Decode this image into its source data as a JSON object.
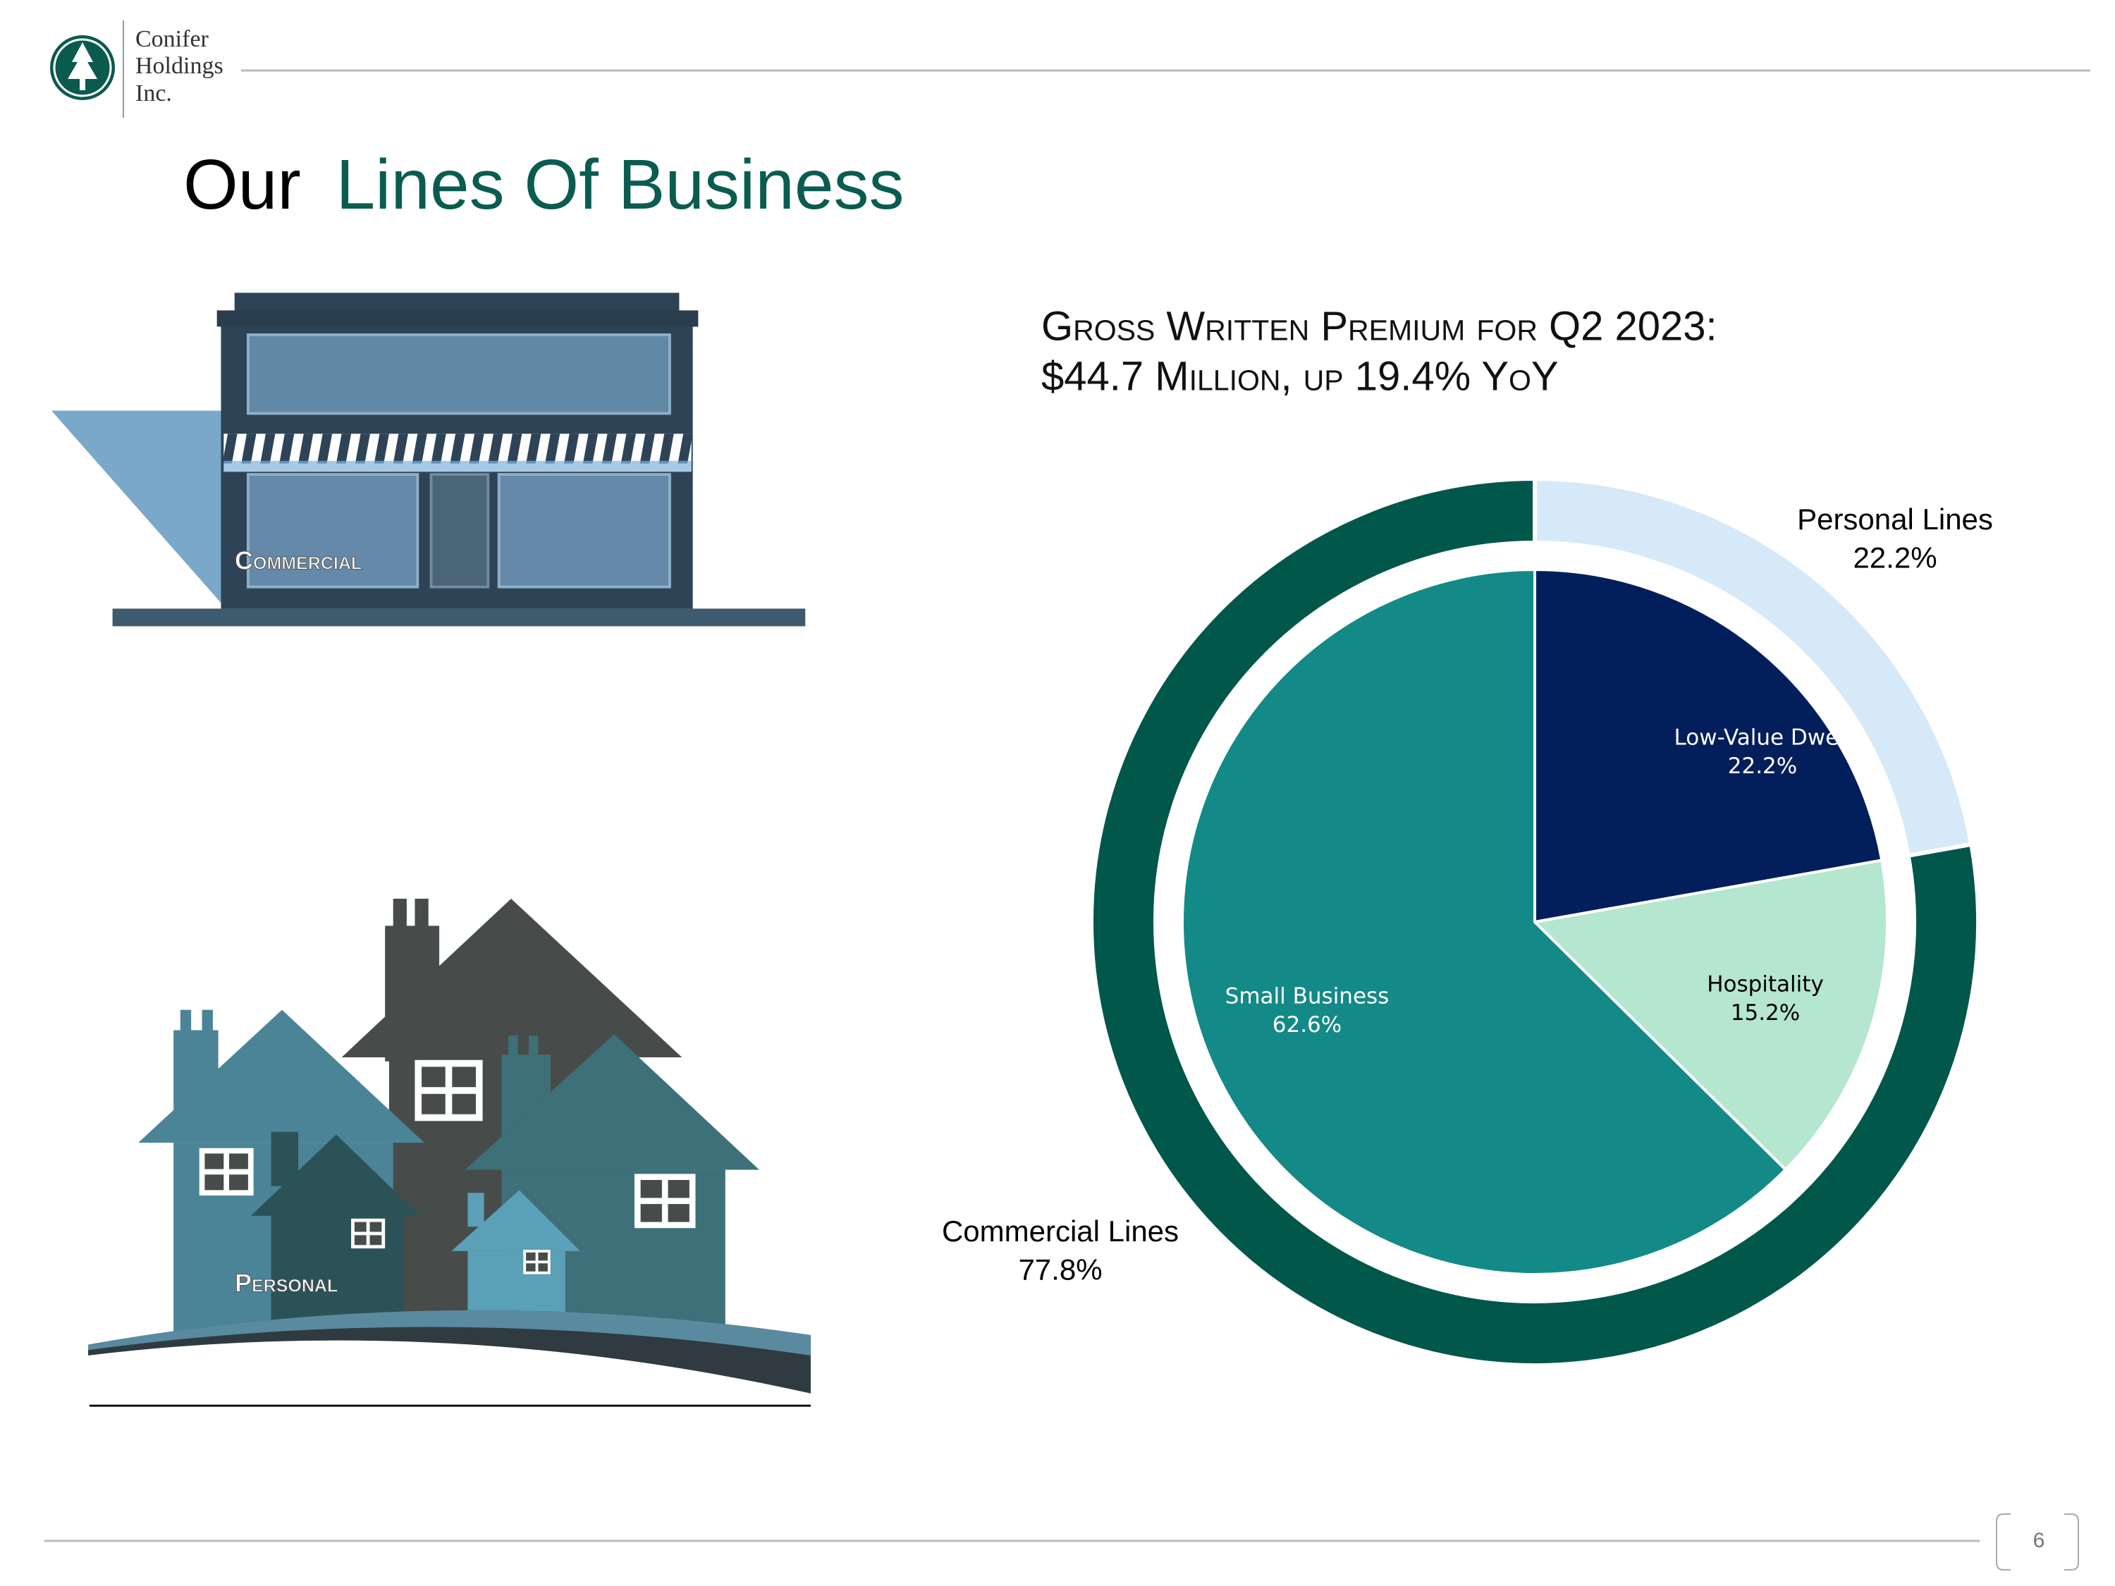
{
  "logo": {
    "lines": [
      "Conifer",
      "Holdings",
      "Inc."
    ]
  },
  "title": {
    "prefix": "Our",
    "highlight": "Lines Of Business"
  },
  "illustrations": {
    "commercial": "Commercial",
    "personal": "Personal"
  },
  "page_number": 6,
  "chart_data": {
    "type": "pie",
    "title": [
      "Gross Written Premium for Q2 2023:",
      "$44.7 Million, up 19.4% YoY"
    ],
    "rings": [
      {
        "categories": [
          "Personal Lines",
          "Commercial Lines"
        ],
        "values": [
          22.2,
          77.8
        ],
        "value_labels": [
          "22.2%",
          "77.8%"
        ],
        "colors": [
          "#d6e9f8",
          "#02574b"
        ]
      },
      {
        "categories": [
          "Low-Value Dwell",
          "Hospitality",
          "Small Business"
        ],
        "values": [
          22.2,
          15.2,
          62.6
        ],
        "value_labels": [
          "22.2%",
          "15.2%",
          "62.6%"
        ],
        "colors": [
          "#021f5b",
          "#b5e6cf",
          "#138a87"
        ]
      }
    ]
  }
}
